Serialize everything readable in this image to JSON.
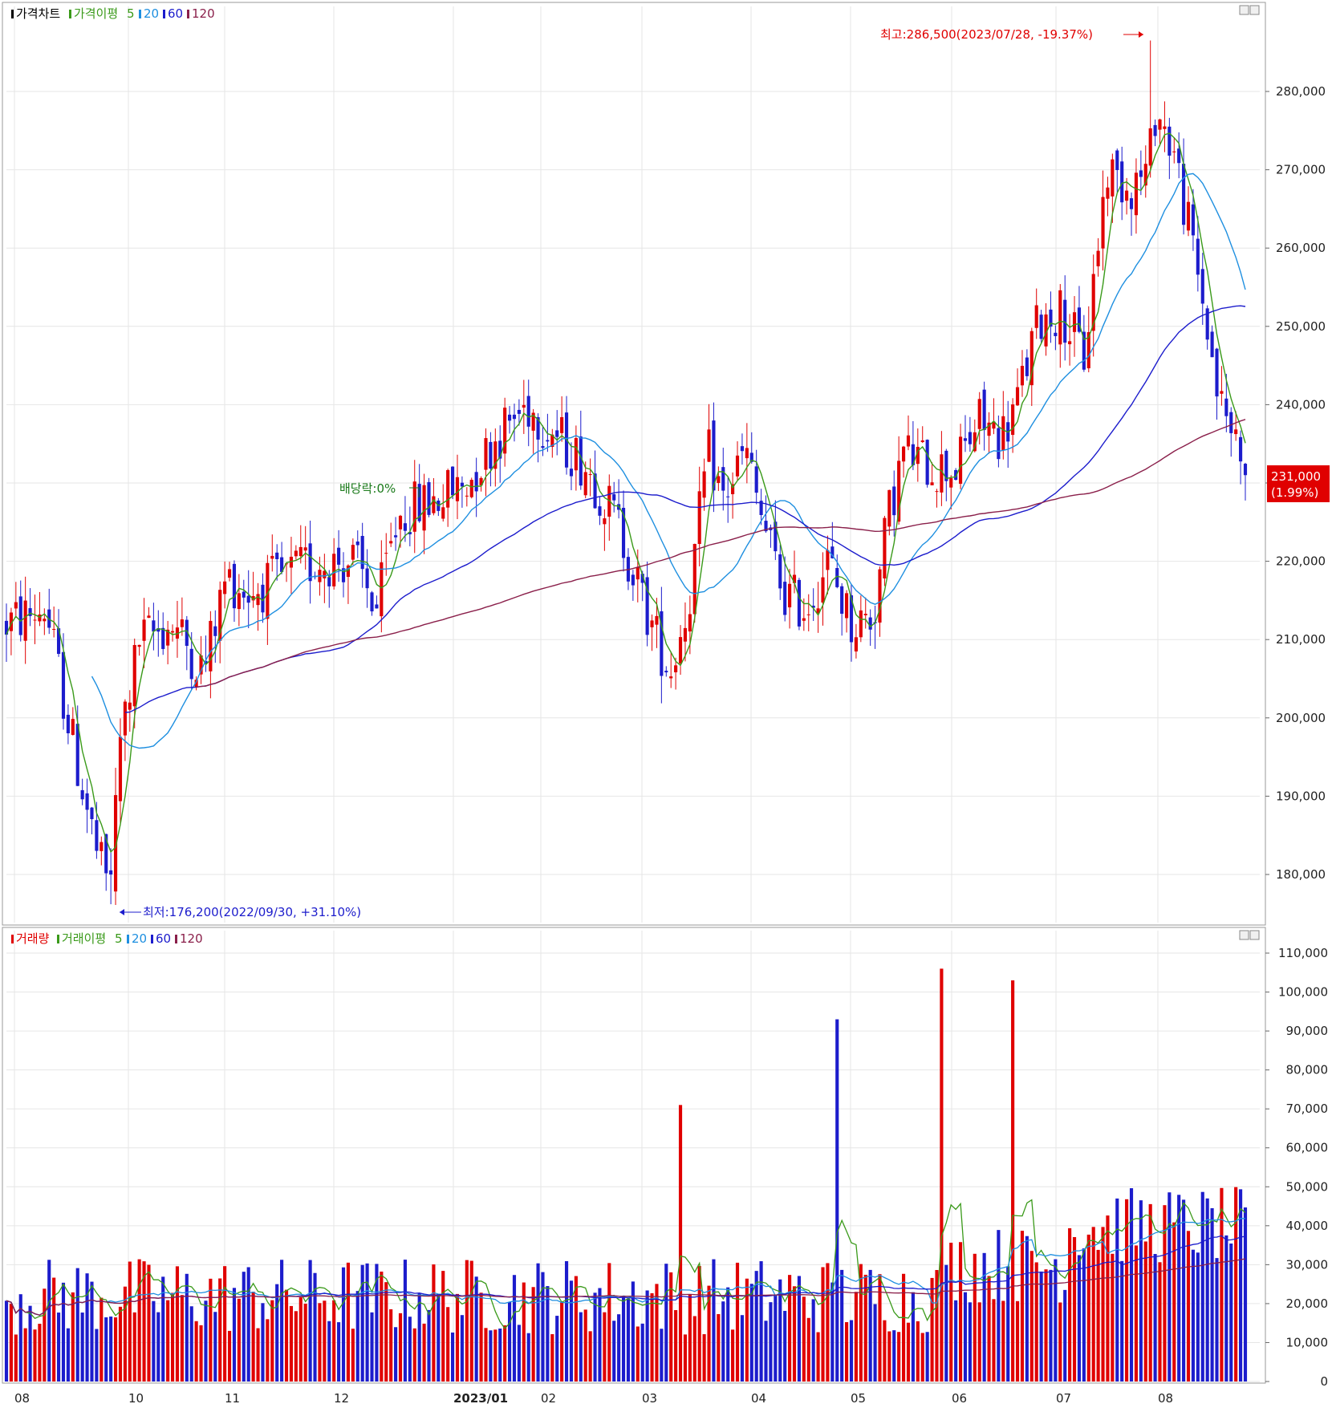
{
  "price_panel": {
    "legend": [
      {
        "text": "가격차트",
        "color": "#000000"
      },
      {
        "text": "가격이평",
        "color": "#3a9a1a"
      },
      {
        "text": "5",
        "color": "#3a9a1a"
      },
      {
        "text": "20",
        "color": "#1e8fe0"
      },
      {
        "text": "60",
        "color": "#1c1ccc"
      },
      {
        "text": "120",
        "color": "#8a1f4a"
      }
    ],
    "high_annotation": "최고:286,500(2023/07/28, -19.37%)",
    "low_annotation": "최저:176,200(2022/09/30, +31.10%)",
    "dividend_annotation": "배당락:0%",
    "current_price": "231,000",
    "current_change": "(1.99%)",
    "axis_labels": [
      "280,000",
      "270,000",
      "260,000",
      "250,000",
      "240,000",
      "230,000",
      "220,000",
      "210,000",
      "200,000",
      "190,000",
      "180,000"
    ]
  },
  "volume_panel": {
    "legend": [
      {
        "text": "거래량",
        "color": "#e00000"
      },
      {
        "text": "거래이평",
        "color": "#3a9a1a"
      },
      {
        "text": "5",
        "color": "#3a9a1a"
      },
      {
        "text": "20",
        "color": "#1e8fe0"
      },
      {
        "text": "60",
        "color": "#1c1ccc"
      },
      {
        "text": "120",
        "color": "#8a1f4a"
      }
    ],
    "axis_labels": [
      "110,000",
      "100,000",
      "90,000",
      "80,000",
      "70,000",
      "60,000",
      "50,000",
      "40,000",
      "30,000",
      "20,000",
      "10,000",
      "0"
    ]
  },
  "x_axis_labels": [
    "08",
    "10",
    "11",
    "12",
    "2023/01",
    "02",
    "03",
    "04",
    "05",
    "06",
    "07",
    "08"
  ],
  "colors": {
    "up": "#e00000",
    "down": "#1c1ccc",
    "ma5": "#3a9a1a",
    "ma20": "#1e8fe0",
    "ma60": "#1c1ccc",
    "ma120": "#8a1f4a"
  },
  "chart_data": [
    {
      "type": "candlestick",
      "title": "가격차트",
      "x_start": "2022/08",
      "x_end": "2023/08",
      "ylim": [
        170000,
        290000
      ],
      "yticks": [
        180000,
        190000,
        200000,
        210000,
        220000,
        230000,
        240000,
        250000,
        260000,
        270000,
        280000
      ],
      "key_points": [
        {
          "date": "2022/08",
          "price": 212000
        },
        {
          "date": "2022/09",
          "price": 195000
        },
        {
          "date": "2022/09/30",
          "price": 176200,
          "label": "최저"
        },
        {
          "date": "2022/10",
          "price": 208000
        },
        {
          "date": "2022/11",
          "price": 215000
        },
        {
          "date": "2022/12",
          "price": 220000
        },
        {
          "date": "2023/01",
          "price": 228000
        },
        {
          "date": "2023/02",
          "price": 240000
        },
        {
          "date": "2023/03",
          "price": 218000
        },
        {
          "date": "2023/03/31",
          "price": 205000
        },
        {
          "date": "2023/04",
          "price": 232000
        },
        {
          "date": "2023/05",
          "price": 212000
        },
        {
          "date": "2023/06",
          "price": 232000
        },
        {
          "date": "2023/07",
          "price": 260000
        },
        {
          "date": "2023/07/28",
          "price": 286500,
          "label": "최고"
        },
        {
          "date": "2023/08",
          "price": 255000
        },
        {
          "date": "2023/08 end",
          "price": 231000,
          "label": "current"
        }
      ],
      "series": [
        {
          "name": "5",
          "color": "#3a9a1a"
        },
        {
          "name": "20",
          "color": "#1e8fe0"
        },
        {
          "name": "60",
          "color": "#1c1ccc"
        },
        {
          "name": "120",
          "color": "#8a1f4a"
        }
      ]
    },
    {
      "type": "bar",
      "title": "거래량",
      "ylim": [
        0,
        115000
      ],
      "yticks": [
        0,
        10000,
        20000,
        30000,
        40000,
        50000,
        60000,
        70000,
        80000,
        90000,
        100000,
        110000
      ],
      "notable_values": [
        {
          "date": "2023/03/31",
          "value": 71000
        },
        {
          "date": "2023/05/15",
          "value": 93000
        },
        {
          "date": "2023/06/20",
          "value": 106000
        },
        {
          "date": "2023/07/12",
          "value": 111000
        },
        {
          "date": "2023/07/11",
          "value": 103000
        }
      ],
      "series": [
        {
          "name": "5",
          "color": "#3a9a1a"
        },
        {
          "name": "20",
          "color": "#1e8fe0"
        },
        {
          "name": "60",
          "color": "#1c1ccc"
        },
        {
          "name": "120",
          "color": "#8a1f4a"
        }
      ]
    }
  ]
}
